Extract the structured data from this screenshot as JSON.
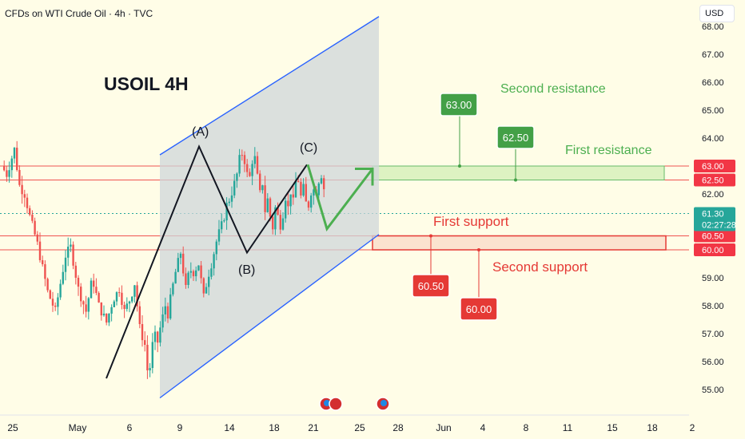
{
  "header": {
    "title": "CFDs on WTI Crude Oil · 4h · TVC"
  },
  "currency": {
    "label": "USD"
  },
  "colors": {
    "up": "#26a69a",
    "down": "#ef5350",
    "resistance": "#4caf50",
    "support": "#e53935",
    "channel": "#2962ff"
  },
  "chart_data": {
    "type": "candlestick",
    "title": "USOIL 4H",
    "symbol": "WTI Crude Oil",
    "timeframe": "4h",
    "ylim": [
      54.5,
      68.5
    ],
    "y_ticks": [
      "55.00",
      "56.00",
      "57.00",
      "58.00",
      "59.00",
      "60.00",
      "60.50",
      "61.00",
      "62.00",
      "62.50",
      "63.00",
      "64.00",
      "65.00",
      "66.00",
      "67.00",
      "68.00"
    ],
    "x_ticks": [
      "25",
      "May",
      "6",
      "9",
      "14",
      "18",
      "21",
      "25",
      "28",
      "Jun",
      "4",
      "8",
      "11",
      "15",
      "18",
      "2"
    ],
    "last_price": "61.30",
    "countdown": "02:27:28",
    "wave_points": [
      {
        "label": "",
        "value": 55.4
      },
      {
        "label": "(A)",
        "value": 63.7
      },
      {
        "label": "(B)",
        "value": 59.9
      },
      {
        "label": "(C)",
        "value": 63.05
      }
    ],
    "projection": [
      63.05,
      60.75,
      62.9
    ],
    "channel": {
      "upper": [
        63.4,
        68.35
      ],
      "lower": [
        54.7,
        60.55
      ]
    },
    "resistance_zone": [
      62.5,
      63.0
    ],
    "support_zone": [
      60.0,
      60.5
    ],
    "levels": [
      {
        "name": "First resistance",
        "value": "62.50"
      },
      {
        "name": "Second resistance",
        "value": "63.00"
      },
      {
        "name": "First support",
        "value": "60.50"
      },
      {
        "name": "Second support",
        "value": "60.00"
      }
    ],
    "price_scale_labels": [
      "63.00",
      "62.50",
      "60.50",
      "60.00"
    ],
    "annotations": [
      "First resistance",
      "Second resistance",
      "First support",
      "Second support"
    ]
  }
}
